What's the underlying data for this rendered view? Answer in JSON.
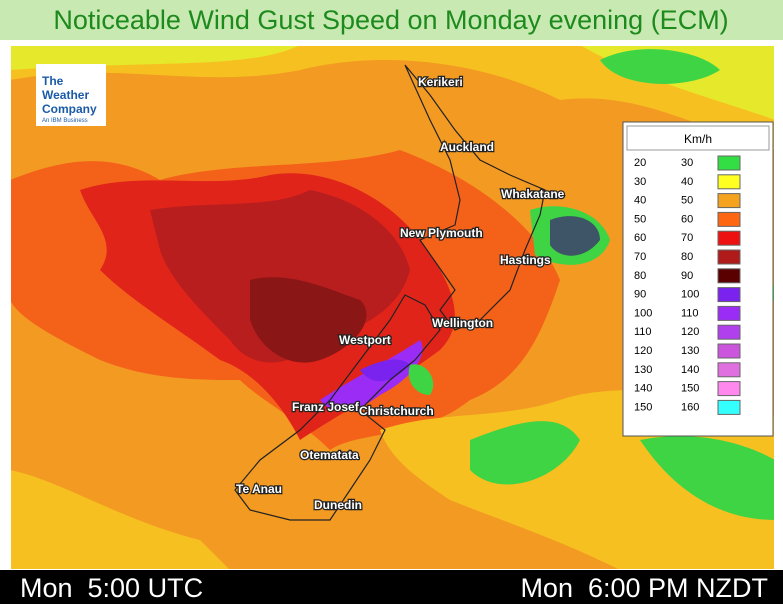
{
  "header": {
    "title": "Noticeable Wind Gust Speed on Monday evening (ECM)"
  },
  "logo": {
    "lines": [
      "The",
      "Weather",
      "Company"
    ],
    "tagline": "An IBM Business"
  },
  "cities": [
    "Kerikeri",
    "Auckland",
    "Whakatane",
    "New Plymouth",
    "Hastings",
    "Wellington",
    "Westport",
    "Franz Josef",
    "Christchurch",
    "Otematata",
    "Te Anau",
    "Dunedin"
  ],
  "legend": {
    "title": "Km/h",
    "rows": [
      {
        "from": 20,
        "to": 30,
        "color": "#33dd44"
      },
      {
        "from": 30,
        "to": 40,
        "color": "#ffff22"
      },
      {
        "from": 40,
        "to": 50,
        "color": "#f5a31f"
      },
      {
        "from": 50,
        "to": 60,
        "color": "#ff6611"
      },
      {
        "from": 60,
        "to": 70,
        "color": "#ee1111"
      },
      {
        "from": 70,
        "to": 80,
        "color": "#b01a1a"
      },
      {
        "from": 80,
        "to": 90,
        "color": "#5a0000"
      },
      {
        "from": 90,
        "to": 100,
        "color": "#7a22ee"
      },
      {
        "from": 100,
        "to": 110,
        "color": "#9a2cf5"
      },
      {
        "from": 110,
        "to": 120,
        "color": "#b040ee"
      },
      {
        "from": 120,
        "to": 130,
        "color": "#cc55dd"
      },
      {
        "from": 130,
        "to": 140,
        "color": "#e070e0"
      },
      {
        "from": 140,
        "to": 150,
        "color": "#ff88ee"
      },
      {
        "from": 150,
        "to": 160,
        "color": "#33ffff"
      }
    ]
  },
  "footer": {
    "left": "Mon  5:00 UTC",
    "right": "Mon  6:00 PM NZDT"
  }
}
